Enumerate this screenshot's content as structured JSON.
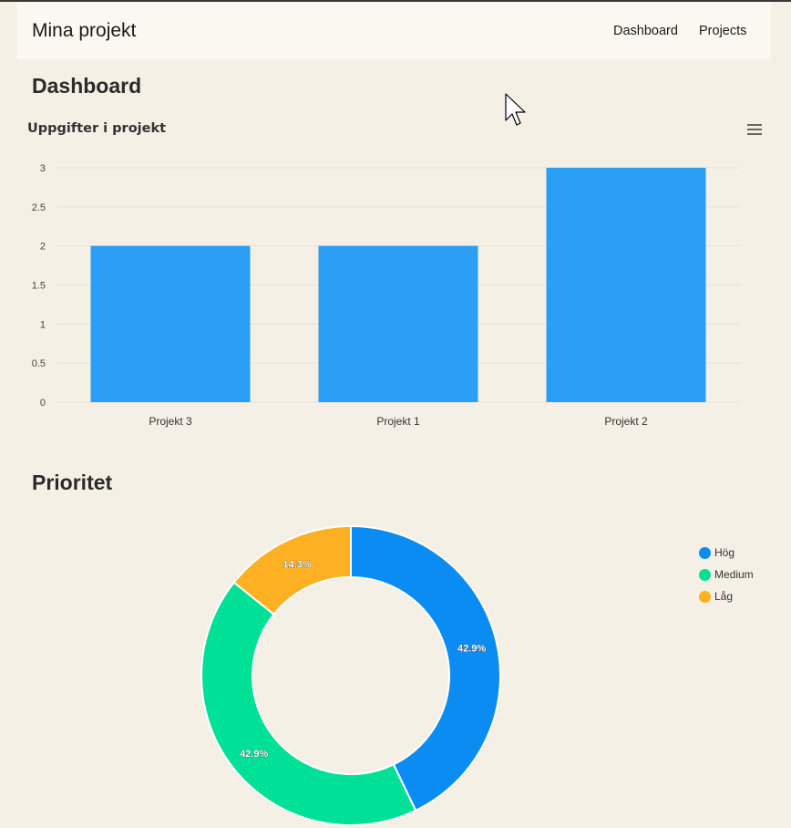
{
  "navbar": {
    "brand": "Mina projekt",
    "links": [
      "Dashboard",
      "Projects"
    ]
  },
  "page": {
    "heading": "Dashboard",
    "priority_heading": "Prioritet"
  },
  "colors": {
    "bar": "#2b9ef5",
    "hog": "#0b8cf2",
    "medium": "#00e096",
    "lag": "#fdb022",
    "background": "#f5f0e6"
  },
  "chart_data": [
    {
      "type": "bar",
      "title": "Uppgifter i projekt",
      "categories": [
        "Projekt 3",
        "Projekt 1",
        "Projekt 2"
      ],
      "values": [
        2,
        2,
        3
      ],
      "ylim": [
        0,
        3
      ],
      "yticks": [
        "0",
        "0.5",
        "1",
        "1.5",
        "2",
        "2.5",
        "3"
      ],
      "grid": true
    },
    {
      "type": "pie",
      "donut": true,
      "labels": [
        "Hög",
        "Medium",
        "Låg"
      ],
      "values": [
        42.9,
        42.9,
        14.3
      ],
      "data_labels": [
        "42.9%",
        "42.9%",
        "14.3%"
      ],
      "legend_position": "right"
    }
  ]
}
